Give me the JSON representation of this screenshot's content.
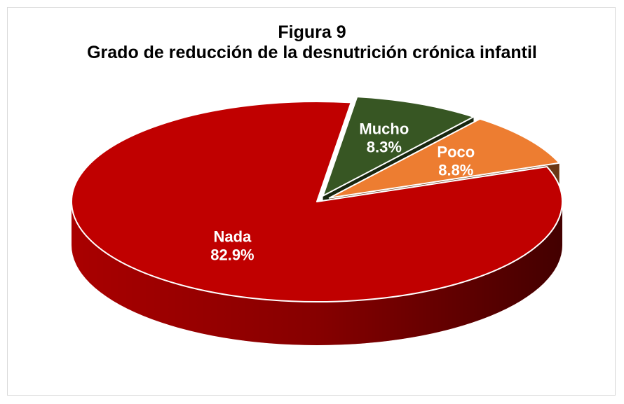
{
  "chart_data": {
    "type": "pie",
    "title": "Figura 9",
    "subtitle": "Grado de reducción de la desnutrición crónica infantil",
    "categories": [
      "Mucho",
      "Poco",
      "Nada"
    ],
    "values": [
      8.3,
      8.8,
      82.9
    ],
    "value_labels": [
      "8.3%",
      "8.8%",
      "82.9%"
    ],
    "colors": [
      "#375623",
      "#ed7d31",
      "#c00000"
    ]
  }
}
